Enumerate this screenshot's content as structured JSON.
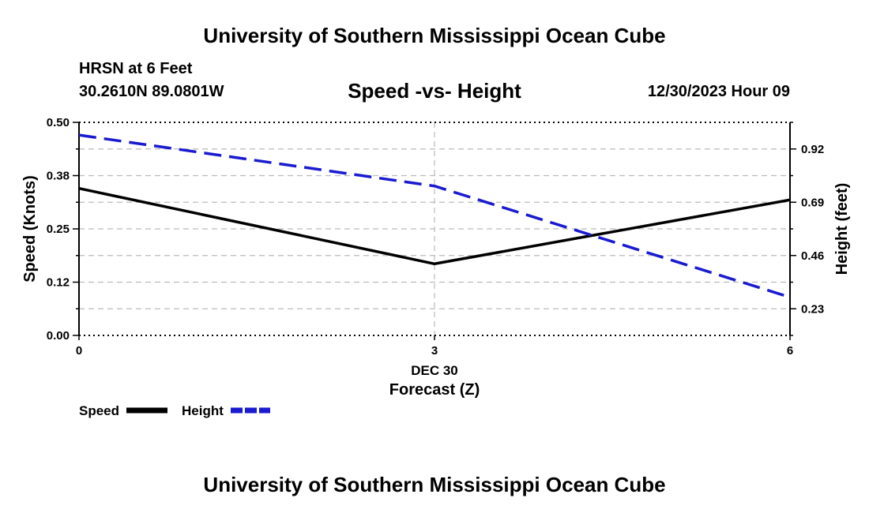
{
  "header": {
    "title": "University of Southern Mississippi Ocean Cube",
    "station": "HRSN at 6 Feet",
    "coords": "30.2610N  89.0801W",
    "subtitle": "Speed -vs- Height",
    "datetime": "12/30/2023 Hour 09"
  },
  "footer": {
    "title": "University of Southern Mississippi Ocean Cube"
  },
  "colors": {
    "speed": "#000000",
    "height": "#1a1ad0",
    "grid": "#bbbbbb"
  },
  "chart_data": {
    "type": "line",
    "title": "Speed -vs- Height",
    "x": [
      0,
      3,
      6
    ],
    "xlim": [
      0,
      6
    ],
    "x_ticks": [
      0,
      3,
      6
    ],
    "x_tick_labels": [
      "0",
      "3",
      "6"
    ],
    "x_date_label": "DEC 30",
    "xlabel": "Forecast (Z)",
    "ylabel_left": "Speed (Knots)",
    "ylim_left": [
      0,
      0.5
    ],
    "y_ticks_left": [
      0.0,
      0.125,
      0.25,
      0.375,
      0.5
    ],
    "y_tick_labels_left": [
      "0.00",
      "0.12",
      "0.25",
      "0.38",
      "0.50"
    ],
    "ylabel_right": "Height (feet)",
    "ylim_right": [
      0.115,
      1.035
    ],
    "y_ticks_right": [
      0.23,
      0.46,
      0.69,
      0.92
    ],
    "y_tick_labels_right": [
      "0.23",
      "0.46",
      "0.69",
      "0.92"
    ],
    "grid": true,
    "series": [
      {
        "name": "Speed",
        "axis": "left",
        "style": "solid",
        "values": [
          0.345,
          0.168,
          0.318
        ]
      },
      {
        "name": "Height",
        "axis": "right",
        "style": "dashed",
        "values": [
          0.98,
          0.76,
          0.28
        ]
      }
    ],
    "legend": [
      "Speed",
      "Height"
    ],
    "legend_position": "bottom-left"
  }
}
